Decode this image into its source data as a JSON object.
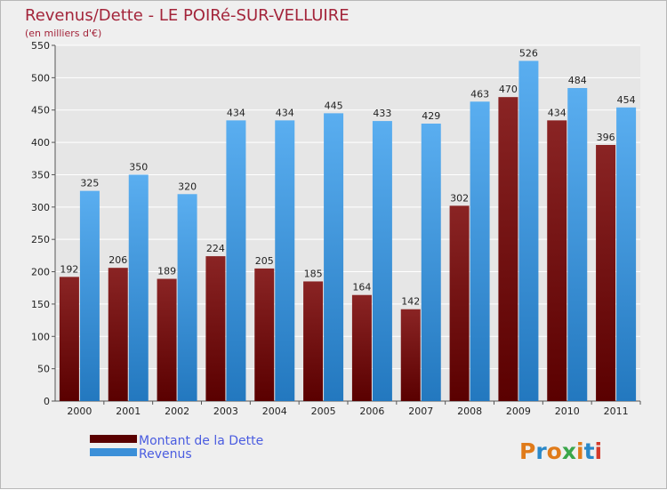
{
  "chart_data": {
    "type": "bar",
    "title": "Revenus/Dette - LE POIRé-SUR-VELLUIRE",
    "subtitle": "(en milliers d'€)",
    "categories": [
      "2000",
      "2001",
      "2002",
      "2003",
      "2004",
      "2005",
      "2006",
      "2007",
      "2008",
      "2009",
      "2010",
      "2011"
    ],
    "series": [
      {
        "name": "Montant de la Dette",
        "color": "#7a1212",
        "values": [
          192,
          206,
          189,
          224,
          205,
          185,
          164,
          142,
          302,
          470,
          434,
          396
        ]
      },
      {
        "name": "Revenus",
        "color": "#4fa3e8",
        "values": [
          325,
          350,
          320,
          434,
          434,
          445,
          433,
          429,
          463,
          526,
          484,
          454
        ]
      }
    ],
    "ylim": [
      0,
      550
    ],
    "yticks": [
      0,
      50,
      100,
      150,
      200,
      250,
      300,
      350,
      400,
      450,
      500,
      550
    ],
    "grid": true,
    "legend_position": "bottom-left"
  },
  "logo": {
    "text": "Proxiti",
    "letters": [
      "P",
      "r",
      "o",
      "x",
      "i",
      "t",
      "i"
    ],
    "colors": [
      "#e07b1a",
      "#2a88c8",
      "#e07b1a",
      "#3aa64a",
      "#e07b1a",
      "#2a88c8",
      "#d43a2a"
    ]
  }
}
